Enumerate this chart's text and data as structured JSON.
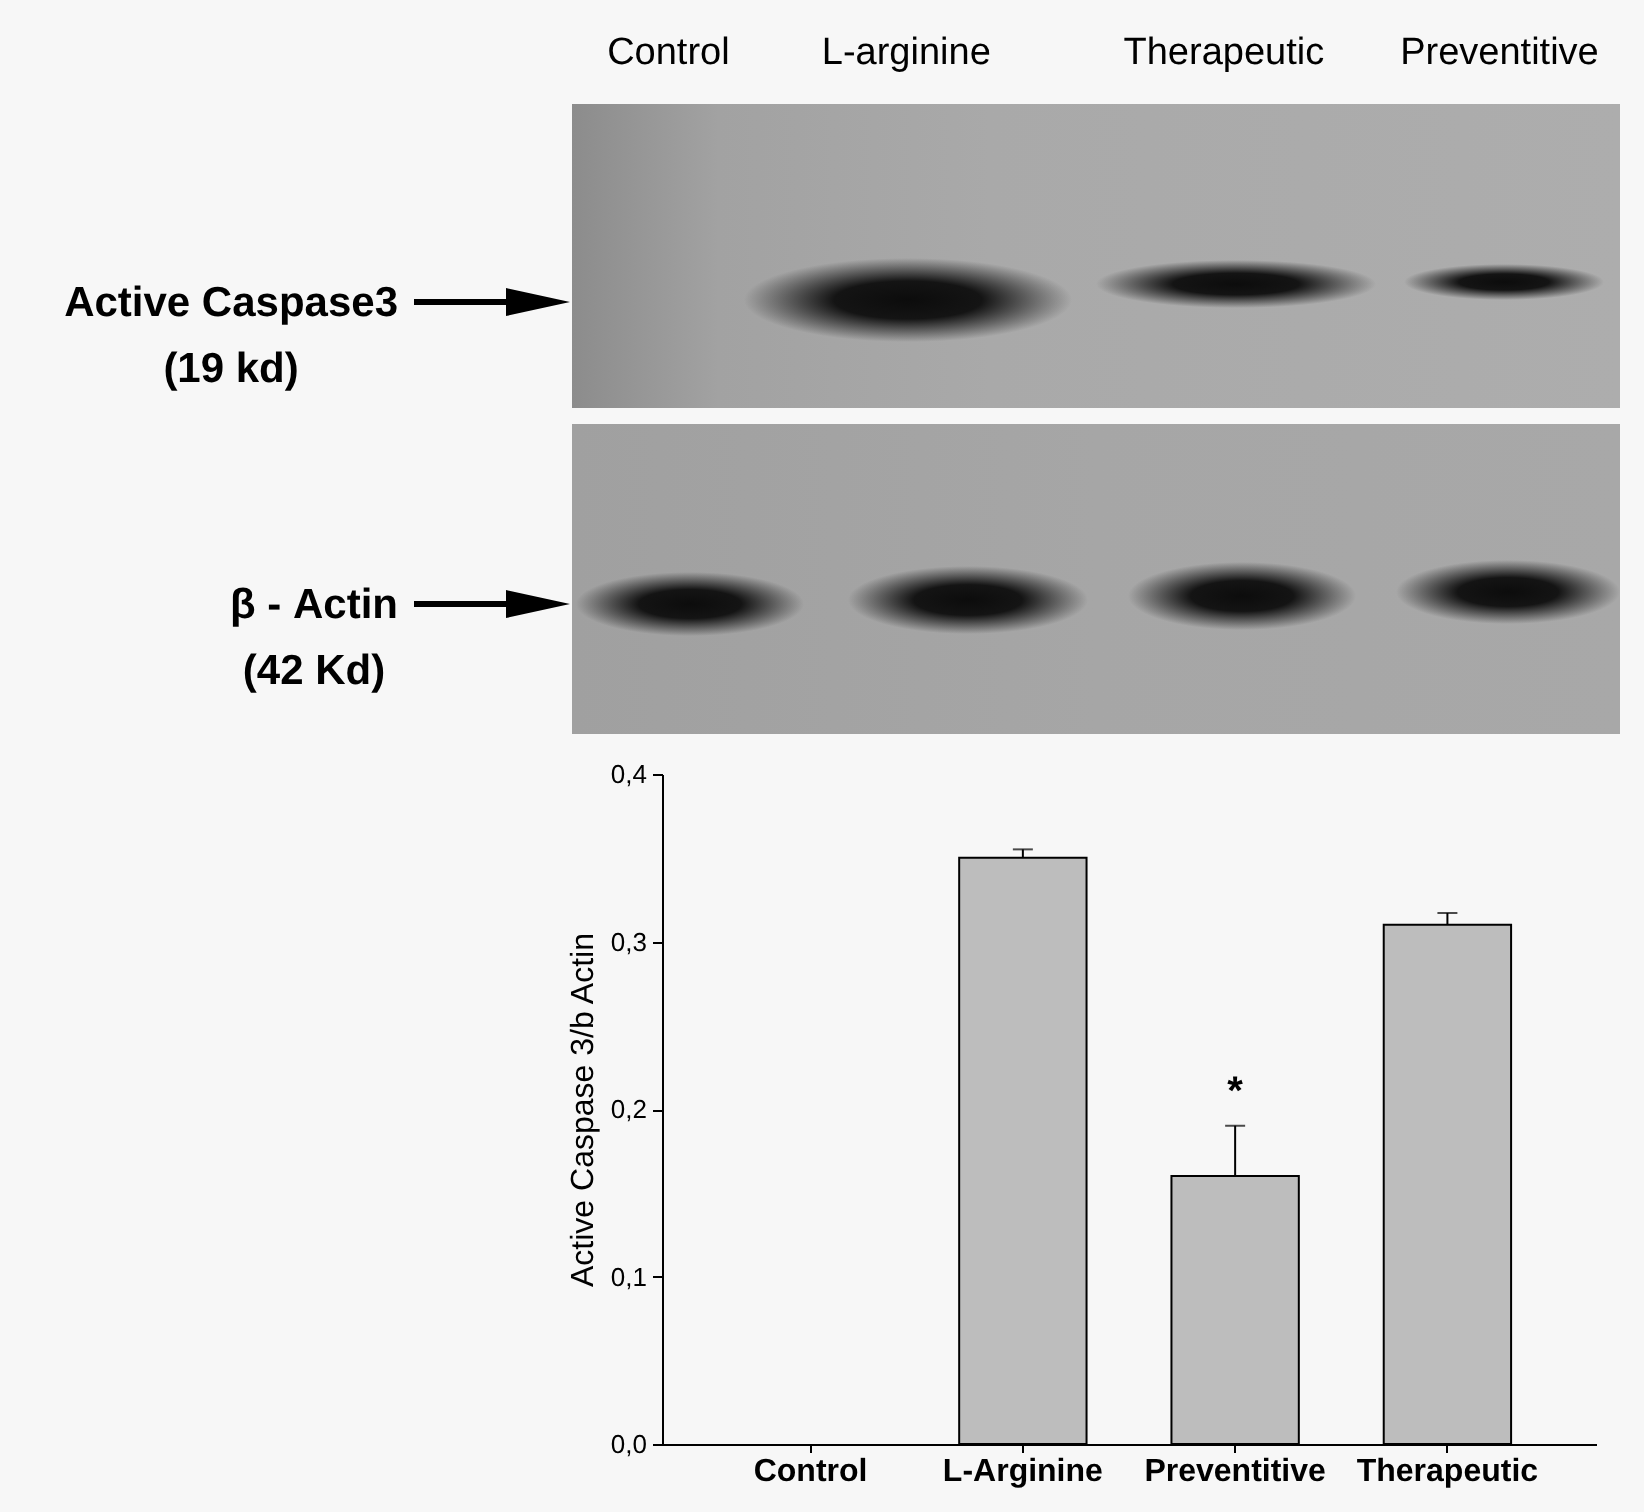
{
  "chart_data": [
    {
      "type": "other",
      "categories": [
        "Control",
        "L-arginine",
        "Therapeutic",
        "Preventitive"
      ],
      "annotations": [
        "Active Caspase3",
        "(19 kd)",
        "β - Actin",
        "(42 Kd)"
      ]
    },
    {
      "type": "bar",
      "categories": [
        "Control",
        "L-Arginine",
        "Preventitive",
        "Therapeutic"
      ],
      "values": [
        null,
        0.35,
        0.16,
        0.31
      ],
      "color": "#bdbdbd",
      "errors": [
        null,
        [
          0.35,
          0.355
        ],
        [
          0.16,
          0.19
        ],
        [
          0.31,
          0.317
        ]
      ],
      "ylabel": "Active Caspase 3/b Actin",
      "ylim": [
        0,
        0.4
      ],
      "yticks": [
        {
          "value": 0,
          "label": "0,0"
        },
        {
          "value": 0.1,
          "label": "0,1"
        },
        {
          "value": 0.2,
          "label": "0,2"
        },
        {
          "value": 0.3,
          "label": "0,3"
        },
        {
          "value": 0.4,
          "label": "0,4"
        }
      ],
      "annotations": [
        {
          "text": "*",
          "x": "Preventitive",
          "y": 0.16
        }
      ]
    }
  ]
}
